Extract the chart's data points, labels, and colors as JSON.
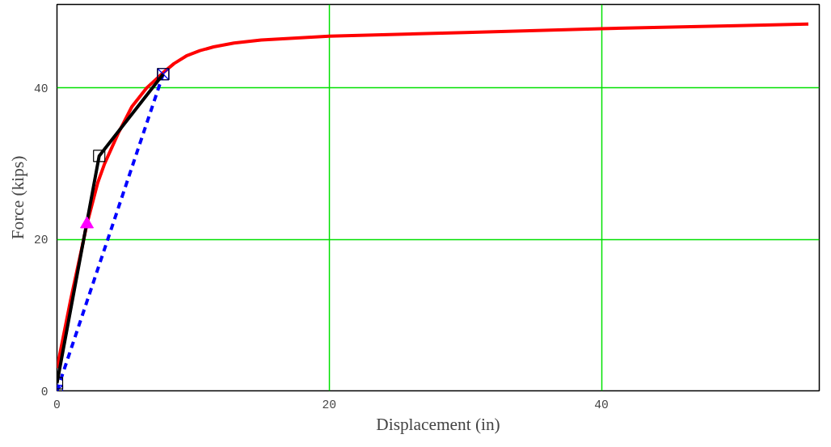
{
  "chart_data": {
    "type": "line",
    "xlabel": "Displacement (in)",
    "ylabel": "Force (kips)",
    "xlim": [
      0,
      56
    ],
    "ylim": [
      0,
      51
    ],
    "xticks": [
      0,
      20,
      40
    ],
    "yticks": [
      0,
      20,
      40
    ],
    "grid": true,
    "series": [
      {
        "color": "#ff0000",
        "x": [
          0,
          1,
          2.2,
          3,
          3.5,
          4.5,
          5.5,
          6.6,
          7.8,
          8.6,
          9.5,
          10.5,
          11.5,
          13,
          15,
          20,
          30,
          40,
          50,
          55.2
        ],
        "values": [
          3,
          12,
          22,
          27.5,
          30,
          34,
          37.5,
          40,
          42,
          43.2,
          44.2,
          44.9,
          45.4,
          45.9,
          46.3,
          46.8,
          47.3,
          47.8,
          48.2,
          48.4
        ],
        "marker": "none",
        "line_style": "solid"
      },
      {
        "color": "#0000ff",
        "x": [
          0,
          7.8
        ],
        "values": [
          0,
          41.8
        ],
        "marker": "cross",
        "line_style": "dashed"
      },
      {
        "color": "#000000",
        "x": [
          0,
          3.1,
          7.8
        ],
        "values": [
          1,
          31,
          41.8
        ],
        "marker": "square",
        "line_style": "solid"
      },
      {
        "type": "scatter",
        "color": "#ff00ff",
        "x": [
          2.2
        ],
        "values": [
          22
        ],
        "marker": "triangle"
      }
    ]
  }
}
